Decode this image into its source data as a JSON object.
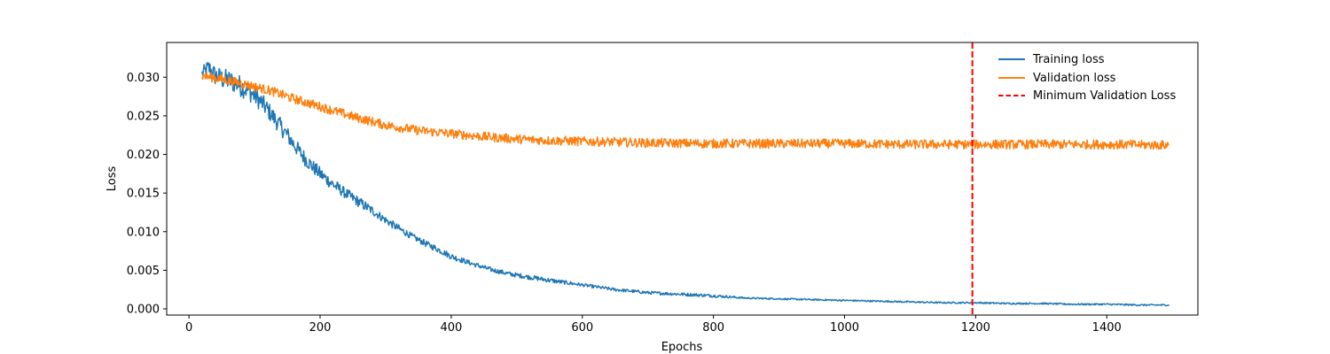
{
  "chart_data": {
    "type": "line",
    "xlabel": "Epochs",
    "ylabel": "Loss",
    "xlim": [
      -34,
      1539
    ],
    "ylim": [
      -0.0008,
      0.0345
    ],
    "xticks": [
      0,
      200,
      400,
      600,
      800,
      1000,
      1200,
      1400
    ],
    "xtick_labels": [
      "0",
      "200",
      "400",
      "600",
      "800",
      "1000",
      "1200",
      "1400"
    ],
    "yticks": [
      0.0,
      0.005,
      0.01,
      0.015,
      0.02,
      0.025,
      0.03
    ],
    "ytick_labels": [
      "0.000",
      "0.005",
      "0.010",
      "0.015",
      "0.020",
      "0.025",
      "0.030"
    ],
    "grid": false,
    "legend_position": "top-right",
    "series": [
      {
        "name": "Training loss",
        "color": "#1f77b4",
        "linestyle": "solid",
        "x": [
          20,
          30,
          40,
          50,
          60,
          70,
          80,
          90,
          100,
          110,
          120,
          130,
          140,
          150,
          160,
          170,
          180,
          190,
          200,
          220,
          240,
          260,
          280,
          300,
          320,
          340,
          360,
          380,
          400,
          430,
          460,
          490,
          520,
          550,
          600,
          650,
          700,
          750,
          800,
          850,
          900,
          950,
          1000,
          1050,
          1100,
          1150,
          1200,
          1250,
          1300,
          1350,
          1400,
          1450,
          1495
        ],
        "y": [
          0.0305,
          0.0312,
          0.0302,
          0.0298,
          0.0296,
          0.0293,
          0.0288,
          0.0283,
          0.0276,
          0.0268,
          0.0258,
          0.0247,
          0.0236,
          0.0225,
          0.0213,
          0.0202,
          0.0192,
          0.0183,
          0.0175,
          0.0161,
          0.0149,
          0.0138,
          0.0127,
          0.0115,
          0.0104,
          0.0094,
          0.0085,
          0.0077,
          0.0068,
          0.0059,
          0.0051,
          0.0045,
          0.0041,
          0.0037,
          0.0031,
          0.0025,
          0.0021,
          0.0019,
          0.0017,
          0.0014,
          0.0013,
          0.0012,
          0.0011,
          0.001,
          0.0009,
          0.0008,
          0.0008,
          0.0007,
          0.0007,
          0.0006,
          0.0006,
          0.0005,
          0.0005
        ],
        "noise": [
          0.0008,
          0.0012,
          0.0013,
          0.0014,
          0.0014,
          0.0014,
          0.0014,
          0.0013,
          0.0013,
          0.0012,
          0.0012,
          0.0011,
          0.0011,
          0.0011,
          0.001,
          0.001,
          0.001,
          0.0009,
          0.0009,
          0.0008,
          0.0007,
          0.0007,
          0.0006,
          0.0005,
          0.0005,
          0.0004,
          0.0004,
          0.0004,
          0.0004,
          0.0003,
          0.0003,
          0.0003,
          0.0003,
          0.0003,
          0.0002,
          0.0002,
          0.0002,
          0.0002,
          0.0002,
          0.0001,
          0.0001,
          0.0001,
          0.0001,
          0.0001,
          0.0001,
          0.0001,
          0.0001,
          0.0001,
          0.0001,
          0.0001,
          0.0001,
          0.0001,
          0.0001
        ]
      },
      {
        "name": "Validation loss",
        "color": "#ff7f0e",
        "linestyle": "solid",
        "x": [
          20,
          40,
          60,
          80,
          100,
          130,
          160,
          200,
          250,
          300,
          350,
          400,
          450,
          500,
          550,
          600,
          650,
          700,
          800,
          900,
          1000,
          1100,
          1200,
          1300,
          1400,
          1495
        ],
        "y": [
          0.0302,
          0.0299,
          0.0296,
          0.0292,
          0.0288,
          0.0281,
          0.0272,
          0.0262,
          0.0249,
          0.0238,
          0.0231,
          0.0227,
          0.0223,
          0.022,
          0.0218,
          0.0217,
          0.0216,
          0.0215,
          0.0214,
          0.0214,
          0.0214,
          0.0213,
          0.0213,
          0.0213,
          0.0213,
          0.0212
        ],
        "noise": [
          0.0006,
          0.0006,
          0.0006,
          0.0006,
          0.0006,
          0.0006,
          0.0006,
          0.0006,
          0.0006,
          0.0006,
          0.0006,
          0.0006,
          0.0006,
          0.0006,
          0.0006,
          0.0006,
          0.0006,
          0.0006,
          0.0006,
          0.0006,
          0.0006,
          0.0006,
          0.0006,
          0.0006,
          0.0006,
          0.0006
        ]
      }
    ],
    "vline": {
      "name": "Minimum Validation Loss",
      "x": 1195,
      "color": "#ff0000",
      "linestyle": "dashed"
    }
  }
}
